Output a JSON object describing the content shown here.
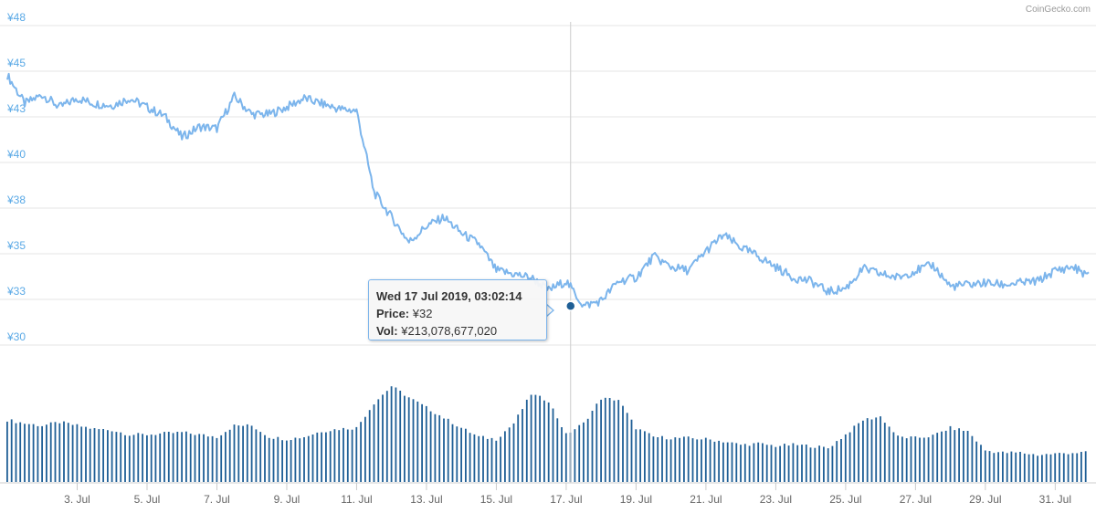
{
  "credit": "CoinGecko.com",
  "colors": {
    "price_line": "#7cb5ec",
    "volume_bar": "#1f5f96",
    "ytick": "#5aa9e6",
    "grid": "#e6e6e6",
    "crosshair": "#cccccc"
  },
  "tooltip": {
    "date": "Wed 17 Jul 2019, 03:02:14",
    "price_label": "Price:",
    "price_value": "¥32",
    "vol_label": "Vol:",
    "vol_value": "¥213,078,677,020"
  },
  "chart_data": {
    "type": "line",
    "x_range": [
      "2019-07-01",
      "2019-07-31T23:00"
    ],
    "ylim": [
      30,
      48
    ],
    "y_ticks": [
      "¥30",
      "¥33",
      "¥35",
      "¥38",
      "¥40",
      "¥43",
      "¥45",
      "¥48"
    ],
    "x_ticks": [
      "3. Jul",
      "5. Jul",
      "7. Jul",
      "9. Jul",
      "11. Jul",
      "13. Jul",
      "15. Jul",
      "17. Jul",
      "19. Jul",
      "21. Jul",
      "23. Jul",
      "25. Jul",
      "27. Jul",
      "29. Jul",
      "31. Jul"
    ],
    "grid": true,
    "crosshair_x": "2019-07-17T03:02:14",
    "series": [
      {
        "type": "line",
        "name": "Price",
        "x": [
          "2019-07-01",
          "2019-07-01T12:00",
          "2019-07-02",
          "2019-07-02T12:00",
          "2019-07-03",
          "2019-07-03T12:00",
          "2019-07-04",
          "2019-07-04T12:00",
          "2019-07-05",
          "2019-07-05T12:00",
          "2019-07-06",
          "2019-07-06T12:00",
          "2019-07-07",
          "2019-07-07T12:00",
          "2019-07-08",
          "2019-07-08T12:00",
          "2019-07-09",
          "2019-07-09T12:00",
          "2019-07-10",
          "2019-07-10T12:00",
          "2019-07-11",
          "2019-07-11T12:00",
          "2019-07-12",
          "2019-07-12T12:00",
          "2019-07-13",
          "2019-07-13T12:00",
          "2019-07-14",
          "2019-07-14T12:00",
          "2019-07-15",
          "2019-07-15T12:00",
          "2019-07-16",
          "2019-07-16T12:00",
          "2019-07-17",
          "2019-07-17T12:00",
          "2019-07-18",
          "2019-07-18T12:00",
          "2019-07-19",
          "2019-07-19T12:00",
          "2019-07-20",
          "2019-07-20T12:00",
          "2019-07-21",
          "2019-07-21T12:00",
          "2019-07-22",
          "2019-07-22T12:00",
          "2019-07-23",
          "2019-07-23T12:00",
          "2019-07-24",
          "2019-07-24T12:00",
          "2019-07-25",
          "2019-07-25T12:00",
          "2019-07-26",
          "2019-07-26T12:00",
          "2019-07-27",
          "2019-07-27T12:00",
          "2019-07-28",
          "2019-07-28T12:00",
          "2019-07-29",
          "2019-07-29T12:00",
          "2019-07-30",
          "2019-07-30T12:00",
          "2019-07-31",
          "2019-07-31T12:00",
          "2019-07-31T23:00"
        ],
        "values": [
          45.2,
          43.6,
          44.1,
          43.4,
          43.9,
          43.6,
          43.5,
          43.9,
          43.4,
          42.9,
          41.7,
          42.3,
          42.2,
          44.0,
          43.0,
          43.0,
          43.4,
          43.9,
          43.6,
          43.3,
          43.2,
          38.6,
          37.2,
          35.8,
          36.7,
          37.2,
          36.3,
          35.7,
          34.2,
          34.0,
          33.8,
          33.1,
          33.6,
          32.2,
          32.5,
          33.6,
          33.8,
          35.0,
          34.4,
          34.2,
          35.3,
          36.2,
          35.5,
          35.0,
          34.4,
          33.8,
          33.6,
          33.0,
          33.2,
          34.3,
          34.0,
          33.8,
          34.2,
          34.5,
          33.3,
          33.4,
          33.5,
          33.4,
          33.5,
          33.6,
          34.2,
          34.4,
          33.9
        ]
      },
      {
        "type": "bar",
        "name": "Volume",
        "x": [
          "2019-07-01",
          "2019-07-01T12:00",
          "2019-07-02",
          "2019-07-02T12:00",
          "2019-07-03",
          "2019-07-03T12:00",
          "2019-07-04",
          "2019-07-04T12:00",
          "2019-07-05",
          "2019-07-05T12:00",
          "2019-07-06",
          "2019-07-06T12:00",
          "2019-07-07",
          "2019-07-07T12:00",
          "2019-07-08",
          "2019-07-08T12:00",
          "2019-07-09",
          "2019-07-09T12:00",
          "2019-07-10",
          "2019-07-10T12:00",
          "2019-07-11",
          "2019-07-11T12:00",
          "2019-07-12",
          "2019-07-12T12:00",
          "2019-07-13",
          "2019-07-13T12:00",
          "2019-07-14",
          "2019-07-14T12:00",
          "2019-07-15",
          "2019-07-15T12:00",
          "2019-07-16",
          "2019-07-16T12:00",
          "2019-07-17",
          "2019-07-17T12:00",
          "2019-07-18",
          "2019-07-18T12:00",
          "2019-07-19",
          "2019-07-19T12:00",
          "2019-07-20",
          "2019-07-20T12:00",
          "2019-07-21",
          "2019-07-21T12:00",
          "2019-07-22",
          "2019-07-22T12:00",
          "2019-07-23",
          "2019-07-23T12:00",
          "2019-07-24",
          "2019-07-24T12:00",
          "2019-07-25",
          "2019-07-25T12:00",
          "2019-07-26",
          "2019-07-26T12:00",
          "2019-07-27",
          "2019-07-27T12:00",
          "2019-07-28",
          "2019-07-28T12:00",
          "2019-07-29",
          "2019-07-29T12:00",
          "2019-07-30",
          "2019-07-30T12:00",
          "2019-07-31",
          "2019-07-31T12:00",
          "2019-07-31T23:00"
        ],
        "values": [
          0.55,
          0.52,
          0.5,
          0.53,
          0.5,
          0.47,
          0.46,
          0.42,
          0.42,
          0.43,
          0.44,
          0.42,
          0.4,
          0.5,
          0.5,
          0.4,
          0.38,
          0.4,
          0.45,
          0.47,
          0.48,
          0.7,
          0.85,
          0.75,
          0.66,
          0.57,
          0.48,
          0.4,
          0.38,
          0.52,
          0.78,
          0.72,
          0.42,
          0.52,
          0.74,
          0.73,
          0.48,
          0.4,
          0.39,
          0.39,
          0.38,
          0.36,
          0.33,
          0.34,
          0.32,
          0.33,
          0.32,
          0.3,
          0.42,
          0.55,
          0.58,
          0.4,
          0.39,
          0.41,
          0.48,
          0.45,
          0.28,
          0.26,
          0.26,
          0.24,
          0.25,
          0.26,
          0.26
        ]
      }
    ]
  }
}
